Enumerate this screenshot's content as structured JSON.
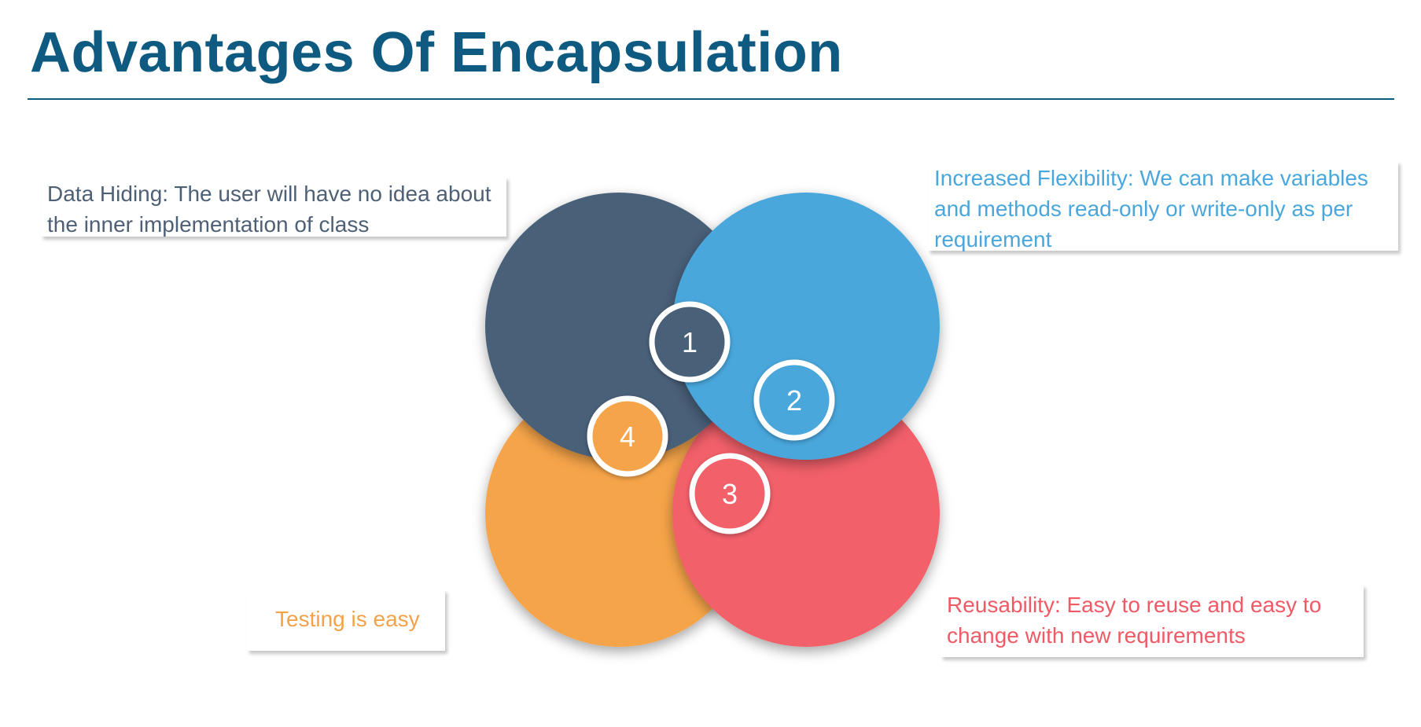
{
  "title": "Advantages Of Encapsulation",
  "items": [
    {
      "number": "1",
      "text": "Data Hiding: The user will have no idea about the inner implementation of class",
      "color": "#4a6079"
    },
    {
      "number": "2",
      "text": "Increased Flexibility: We can make variables and methods read-only or write-only as per requirement",
      "color": "#49a7dc"
    },
    {
      "number": "3",
      "text": "Reusability: Easy to reuse and easy to change with new requirements",
      "color": "#f2606a"
    },
    {
      "number": "4",
      "text": "Testing is easy",
      "color": "#f6a44a"
    }
  ]
}
